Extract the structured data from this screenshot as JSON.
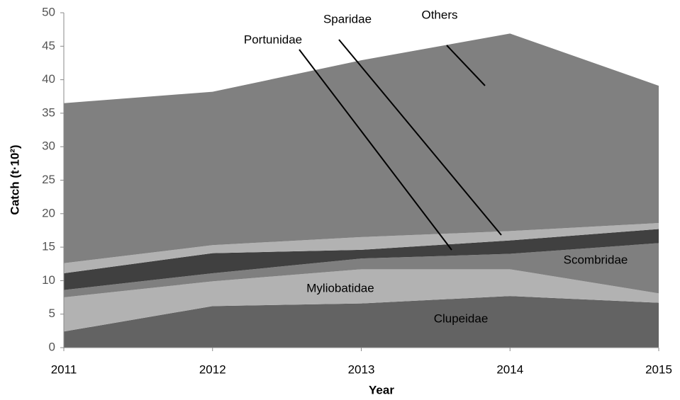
{
  "chart_data": {
    "type": "stacked-area",
    "xlabel": "Year",
    "ylabel": "Catch (t·10²)",
    "categories": [
      "2011",
      "2012",
      "2013",
      "2014",
      "2015"
    ],
    "ylim": [
      0,
      50
    ],
    "yticks": [
      0,
      5,
      10,
      15,
      20,
      25,
      30,
      35,
      40,
      45,
      50
    ],
    "series": [
      {
        "name": "Clupeidae",
        "color": "#636363",
        "values": [
          2.4,
          6.2,
          6.6,
          7.7,
          6.7
        ]
      },
      {
        "name": "Myliobatidae",
        "color": "#b2b2b2",
        "values": [
          5.1,
          3.7,
          5.1,
          4.0,
          1.4
        ]
      },
      {
        "name": "Scombridae",
        "color": "#7f7f7f",
        "values": [
          1.1,
          1.2,
          1.6,
          2.3,
          7.5
        ]
      },
      {
        "name": "Portunidae",
        "color": "#404040",
        "values": [
          2.5,
          3.0,
          1.3,
          2.0,
          2.1
        ]
      },
      {
        "name": "Sparidae",
        "color": "#b2b2b2",
        "values": [
          1.5,
          1.2,
          1.9,
          1.4,
          0.9
        ]
      },
      {
        "name": "Others",
        "color": "#808080",
        "values": [
          23.9,
          22.9,
          26.4,
          29.5,
          20.5
        ]
      }
    ]
  }
}
